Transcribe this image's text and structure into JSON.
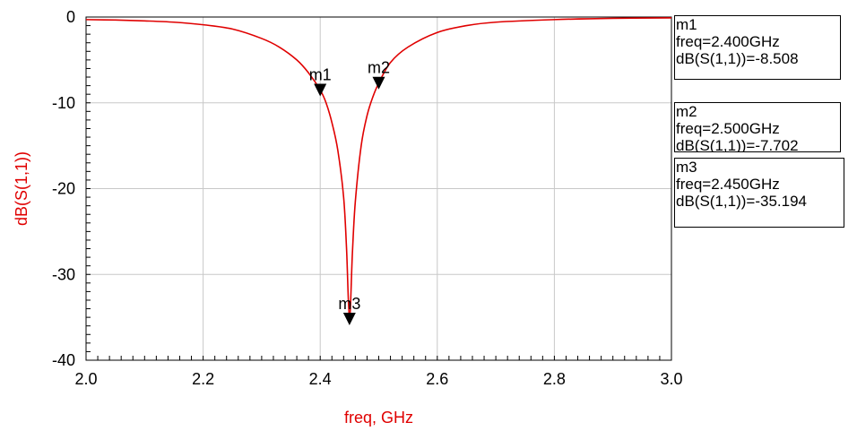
{
  "chart_data": {
    "type": "line",
    "xlabel": "freq, GHz",
    "ylabel": "dB(S(1,1))",
    "xlim": [
      2.0,
      3.0
    ],
    "ylim": [
      -40,
      0
    ],
    "x_ticks": [
      "2.0",
      "2.2",
      "2.4",
      "2.6",
      "2.8",
      "3.0"
    ],
    "y_ticks": [
      "0",
      "-10",
      "-20",
      "-30",
      "-40"
    ],
    "grid": true,
    "series": [
      {
        "color": "#e00000",
        "x": [
          2.0,
          2.05,
          2.1,
          2.15,
          2.2,
          2.25,
          2.3,
          2.33,
          2.36,
          2.38,
          2.4,
          2.41,
          2.42,
          2.43,
          2.44,
          2.445,
          2.45,
          2.455,
          2.46,
          2.47,
          2.48,
          2.49,
          2.5,
          2.52,
          2.55,
          2.6,
          2.65,
          2.7,
          2.8,
          2.9,
          3.0
        ],
        "values": [
          -0.3,
          -0.35,
          -0.45,
          -0.6,
          -0.9,
          -1.4,
          -2.5,
          -3.5,
          -5.0,
          -6.5,
          -8.5,
          -10.0,
          -12.3,
          -15.5,
          -21.0,
          -27.0,
          -35.2,
          -27.5,
          -21.5,
          -15.0,
          -11.5,
          -9.3,
          -7.7,
          -5.3,
          -3.5,
          -1.8,
          -1.0,
          -0.6,
          -0.3,
          -0.15,
          -0.1
        ]
      }
    ],
    "markers": [
      {
        "name": "m1",
        "freq": 2.4,
        "value": -8.508,
        "line1": "m1",
        "line2": "freq=2.400GHz",
        "line3": "dB(S(1,1))=-8.508"
      },
      {
        "name": "m2",
        "freq": 2.5,
        "value": -7.702,
        "line1": "m2",
        "line2": "freq=2.500GHz",
        "line3": "dB(S(1,1))=-7.702"
      },
      {
        "name": "m3",
        "freq": 2.45,
        "value": -35.194,
        "line1": "m3",
        "line2": "freq=2.450GHz",
        "line3": "dB(S(1,1))=-35.194"
      }
    ]
  }
}
